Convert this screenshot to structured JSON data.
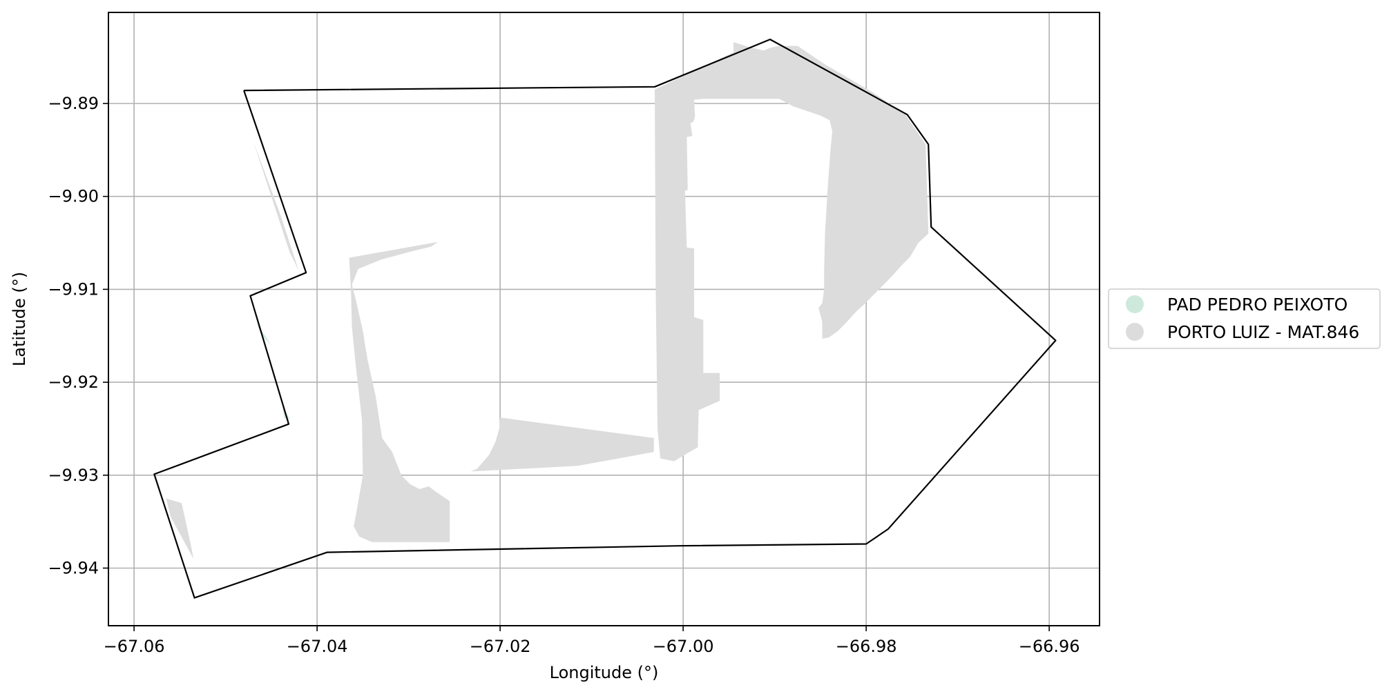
{
  "chart_data": {
    "type": "map",
    "xlabel": "Longitude (°)",
    "ylabel": "Latitude (°)",
    "xlim": [
      -67.0628,
      -66.9545
    ],
    "ylim": [
      -9.9462,
      -9.8802
    ],
    "xticks": [
      -67.06,
      -67.04,
      -67.02,
      -67.0,
      -66.98,
      -66.96
    ],
    "xtick_labels": [
      "−67.06",
      "−67.04",
      "−67.02",
      "−67.00",
      "−66.98",
      "−66.96"
    ],
    "yticks": [
      -9.89,
      -9.9,
      -9.91,
      -9.92,
      -9.93,
      -9.94
    ],
    "ytick_labels": [
      "−9.89",
      "−9.90",
      "−9.91",
      "−9.92",
      "−9.93",
      "−9.94"
    ],
    "grid": true,
    "legend_position": "center-right outside",
    "legend": [
      {
        "label": "PAD PEDRO PEIXOTO",
        "color": "#cde9dc"
      },
      {
        "label": "PORTO LUIZ - MAT.846",
        "color": "#dcdcdc"
      }
    ],
    "boundary": {
      "color": "#000000",
      "coords": [
        [
          -67.048,
          -9.8886
        ],
        [
          -67.0031,
          -9.8882
        ],
        [
          -66.9905,
          -9.8831
        ],
        [
          -66.9755,
          -9.8912
        ],
        [
          -66.9732,
          -9.8944
        ],
        [
          -66.9729,
          -9.9033
        ],
        [
          -66.9593,
          -9.9155
        ],
        [
          -66.9776,
          -9.9358
        ],
        [
          -66.98,
          -9.9374
        ],
        [
          -67.0004,
          -9.9376
        ],
        [
          -67.0389,
          -9.9383
        ],
        [
          -67.0534,
          -9.9432
        ],
        [
          -67.0578,
          -9.9299
        ],
        [
          -67.0431,
          -9.9245
        ],
        [
          -67.0473,
          -9.9107
        ],
        [
          -67.0412,
          -9.9082
        ],
        [
          -67.048,
          -9.8886
        ]
      ]
    },
    "areas": [
      {
        "name": "PORTO LUIZ - MAT.846",
        "color": "#dcdcdc",
        "polygons": [
          [
            [
              -67.0031,
              -9.8885
            ],
            [
              -66.9945,
              -9.8845
            ],
            [
              -66.9945,
              -9.8834
            ],
            [
              -66.9925,
              -9.884
            ],
            [
              -66.9912,
              -9.8843
            ],
            [
              -66.9905,
              -9.884
            ],
            [
              -66.9895,
              -9.8838
            ],
            [
              -66.9875,
              -9.8838
            ],
            [
              -66.9845,
              -9.8858
            ],
            [
              -66.9793,
              -9.8888
            ],
            [
              -66.9757,
              -9.8912
            ],
            [
              -66.9735,
              -9.8944
            ],
            [
              -66.9732,
              -9.904
            ],
            [
              -66.9743,
              -9.905
            ],
            [
              -66.9752,
              -9.9065
            ],
            [
              -66.9762,
              -9.9075
            ],
            [
              -66.9771,
              -9.9085
            ],
            [
              -66.9781,
              -9.9095
            ],
            [
              -66.9791,
              -9.9105
            ],
            [
              -66.9801,
              -9.9115
            ],
            [
              -66.9811,
              -9.9124
            ],
            [
              -66.9821,
              -9.9135
            ],
            [
              -66.9831,
              -9.9145
            ],
            [
              -66.9841,
              -9.9152
            ],
            [
              -66.9848,
              -9.9153
            ],
            [
              -66.9848,
              -9.9135
            ],
            [
              -66.9852,
              -9.912
            ],
            [
              -66.9848,
              -9.9115
            ],
            [
              -66.9846,
              -9.91
            ],
            [
              -66.9846,
              -9.908
            ],
            [
              -66.9845,
              -9.904
            ],
            [
              -66.9842,
              -9.899
            ],
            [
              -66.9839,
              -9.895
            ],
            [
              -66.9837,
              -9.893
            ],
            [
              -66.984,
              -9.8918
            ],
            [
              -66.985,
              -9.8913
            ],
            [
              -66.9868,
              -9.8907
            ],
            [
              -66.988,
              -9.8903
            ],
            [
              -66.9895,
              -9.8895
            ],
            [
              -66.9915,
              -9.8895
            ],
            [
              -66.996,
              -9.8895
            ],
            [
              -66.9978,
              -9.8895
            ],
            [
              -66.9988,
              -9.8896
            ],
            [
              -66.9987,
              -9.8914
            ],
            [
              -66.9989,
              -9.892
            ],
            [
              -66.9992,
              -9.8921
            ],
            [
              -66.999,
              -9.8935
            ],
            [
              -66.9996,
              -9.8936
            ],
            [
              -66.9995,
              -9.8993
            ],
            [
              -66.9998,
              -9.8994
            ],
            [
              -66.9996,
              -9.9055
            ],
            [
              -66.9988,
              -9.9056
            ],
            [
              -66.9988,
              -9.9093
            ],
            [
              -66.9988,
              -9.913
            ],
            [
              -66.9978,
              -9.9133
            ],
            [
              -66.9978,
              -9.915
            ],
            [
              -66.9978,
              -9.919
            ],
            [
              -66.996,
              -9.919
            ],
            [
              -66.996,
              -9.922
            ],
            [
              -66.9983,
              -9.923
            ],
            [
              -66.9984,
              -9.927
            ],
            [
              -66.9993,
              -9.9275
            ],
            [
              -67.001,
              -9.9285
            ],
            [
              -67.0025,
              -9.9282
            ],
            [
              -67.0028,
              -9.925
            ],
            [
              -67.003,
              -9.91
            ],
            [
              -67.0031,
              -9.8885
            ]
          ],
          [
            [
              -67.0032,
              -9.926
            ],
            [
              -67.02,
              -9.9238
            ],
            [
              -67.0201,
              -9.925
            ],
            [
              -67.0205,
              -9.9264
            ],
            [
              -67.0212,
              -9.9278
            ],
            [
              -67.0225,
              -9.9293
            ],
            [
              -67.0232,
              -9.9296
            ],
            [
              -67.0115,
              -9.929
            ],
            [
              -67.0032,
              -9.9275
            ],
            [
              -67.0032,
              -9.926
            ]
          ],
          [
            [
              -67.0365,
              -9.9066
            ],
            [
              -67.0268,
              -9.9049
            ],
            [
              -67.0275,
              -9.9054
            ],
            [
              -67.03,
              -9.906
            ],
            [
              -67.033,
              -9.9068
            ],
            [
              -67.0355,
              -9.9078
            ],
            [
              -67.0362,
              -9.9095
            ],
            [
              -67.0358,
              -9.911
            ],
            [
              -67.035,
              -9.9145
            ],
            [
              -67.0345,
              -9.9175
            ],
            [
              -67.0336,
              -9.9215
            ],
            [
              -67.0329,
              -9.926
            ],
            [
              -67.0318,
              -9.9275
            ],
            [
              -67.0308,
              -9.93
            ],
            [
              -67.0298,
              -9.931
            ],
            [
              -67.0288,
              -9.9315
            ],
            [
              -67.0278,
              -9.9312
            ],
            [
              -67.027,
              -9.9318
            ],
            [
              -67.0255,
              -9.9328
            ],
            [
              -67.0255,
              -9.9372
            ],
            [
              -67.034,
              -9.9372
            ],
            [
              -67.0354,
              -9.9366
            ],
            [
              -67.036,
              -9.9355
            ],
            [
              -67.0358,
              -9.9345
            ],
            [
              -67.035,
              -9.93
            ],
            [
              -67.0351,
              -9.924
            ],
            [
              -67.0358,
              -9.918
            ],
            [
              -67.0362,
              -9.914
            ],
            [
              -67.0363,
              -9.91
            ],
            [
              -67.0365,
              -9.9066
            ]
          ],
          [
            [
              -67.047,
              -9.894
            ],
            [
              -67.0455,
              -9.8985
            ],
            [
              -67.043,
              -9.906
            ],
            [
              -67.042,
              -9.908
            ],
            [
              -67.044,
              -9.902
            ],
            [
              -67.047,
              -9.894
            ]
          ],
          [
            [
              -67.0565,
              -9.9325
            ],
            [
              -67.0548,
              -9.933
            ],
            [
              -67.0538,
              -9.9375
            ],
            [
              -67.0535,
              -9.939
            ],
            [
              -67.056,
              -9.9345
            ],
            [
              -67.0565,
              -9.9325
            ]
          ]
        ]
      },
      {
        "name": "PAD PEDRO PEIXOTO",
        "color": "#cde9dc",
        "polygons": [
          [
            [
              -67.0467,
              -9.9135
            ],
            [
              -67.045,
              -9.916
            ],
            [
              -67.046,
              -9.915
            ],
            [
              -67.0467,
              -9.9135
            ]
          ],
          [
            [
              -67.0438,
              -9.9225
            ],
            [
              -67.043,
              -9.924
            ],
            [
              -67.0436,
              -9.9238
            ],
            [
              -67.0438,
              -9.9225
            ]
          ]
        ]
      }
    ]
  }
}
